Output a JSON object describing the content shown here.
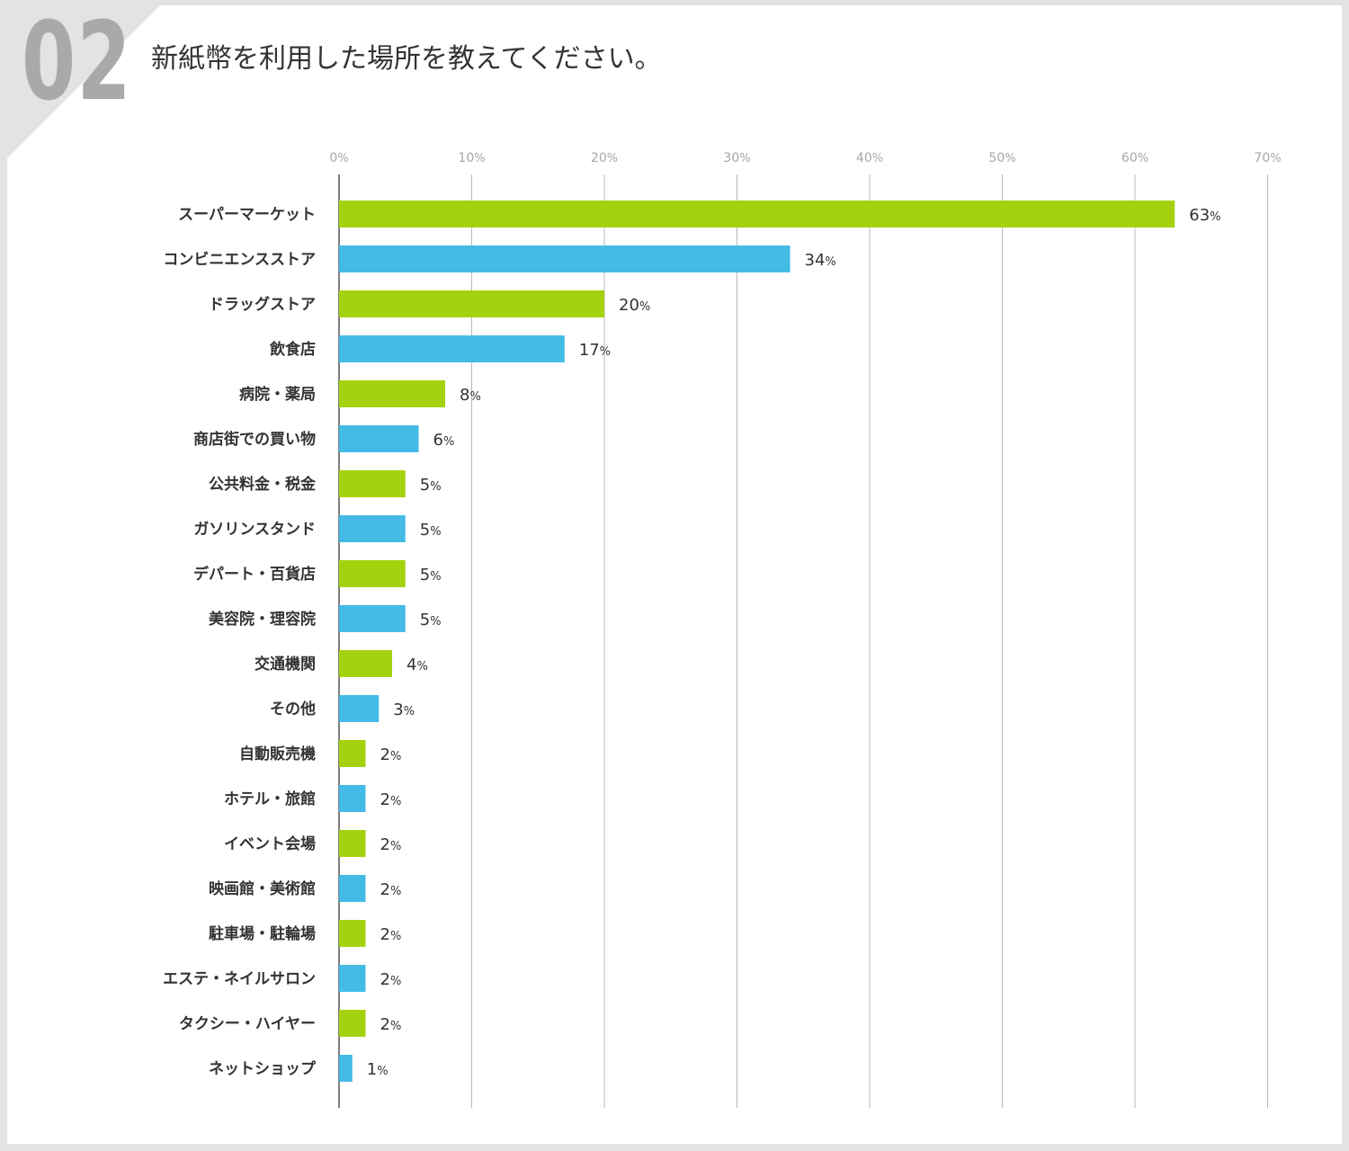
{
  "header": {
    "question_number": "02",
    "title": "新紙幣を利用した場所を教えてください。"
  },
  "chart_data": {
    "type": "bar",
    "orientation": "horizontal",
    "title": "新紙幣を利用した場所を教えてください。",
    "xlim": [
      0,
      70
    ],
    "x_ticks": [
      "0%",
      "10%",
      "20%",
      "30%",
      "40%",
      "50%",
      "60%",
      "70%"
    ],
    "grid": true,
    "value_suffix": "%",
    "colors": [
      "#a4d20e",
      "#43bbe6"
    ],
    "categories": [
      "スーパーマーケット",
      "コンビニエンスストア",
      "ドラッグストア",
      "飲食店",
      "病院・薬局",
      "商店街での買い物",
      "公共料金・税金",
      "ガソリンスタンド",
      "デパート・百貨店",
      "美容院・理容院",
      "交通機関",
      "その他",
      "自動販売機",
      "ホテル・旅館",
      "イベント会場",
      "映画館・美術館",
      "駐車場・駐輪場",
      "エステ・ネイルサロン",
      "タクシー・ハイヤー",
      "ネットショップ"
    ],
    "values": [
      63,
      34,
      20,
      17,
      8,
      6,
      5,
      5,
      5,
      5,
      4,
      3,
      2,
      2,
      2,
      2,
      2,
      2,
      2,
      1
    ]
  }
}
